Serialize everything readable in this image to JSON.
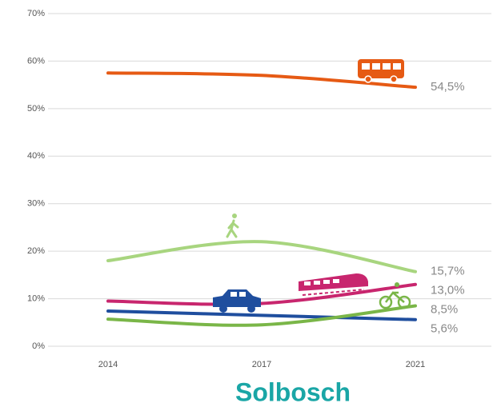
{
  "chart_data": {
    "type": "line",
    "title": "Solbosch",
    "categories": [
      "2014",
      "2017",
      "2021"
    ],
    "series": [
      {
        "name": "Bus",
        "color": "#e65a14",
        "values": [
          57.5,
          57.0,
          54.5
        ],
        "value_labels": [
          null,
          null,
          "54,5%"
        ]
      },
      {
        "name": "Walking",
        "color": "#a8d57f",
        "values": [
          18.0,
          22.0,
          15.7
        ],
        "value_labels": [
          null,
          null,
          "15,7%"
        ]
      },
      {
        "name": "Train",
        "color": "#c8266e",
        "values": [
          9.5,
          9.0,
          13.0
        ],
        "value_labels": [
          null,
          null,
          "13,0%"
        ]
      },
      {
        "name": "Car",
        "color": "#1f4e9e",
        "values": [
          7.4,
          6.5,
          5.6
        ],
        "value_labels": [
          null,
          null,
          "5,6%"
        ]
      },
      {
        "name": "Bicycle",
        "color": "#7ab648",
        "values": [
          5.7,
          4.5,
          8.5
        ],
        "value_labels": [
          null,
          null,
          "8,5%"
        ]
      }
    ],
    "ylim": [
      0,
      70
    ],
    "yticks": [
      {
        "value": 0,
        "label": "0%"
      },
      {
        "value": 10,
        "label": "10%"
      },
      {
        "value": 20,
        "label": "20%"
      },
      {
        "value": 30,
        "label": "30%"
      },
      {
        "value": 40,
        "label": "40%"
      },
      {
        "value": 50,
        "label": "50%"
      },
      {
        "value": 60,
        "label": "60%"
      },
      {
        "value": 70,
        "label": "70%"
      }
    ],
    "grid": true
  }
}
